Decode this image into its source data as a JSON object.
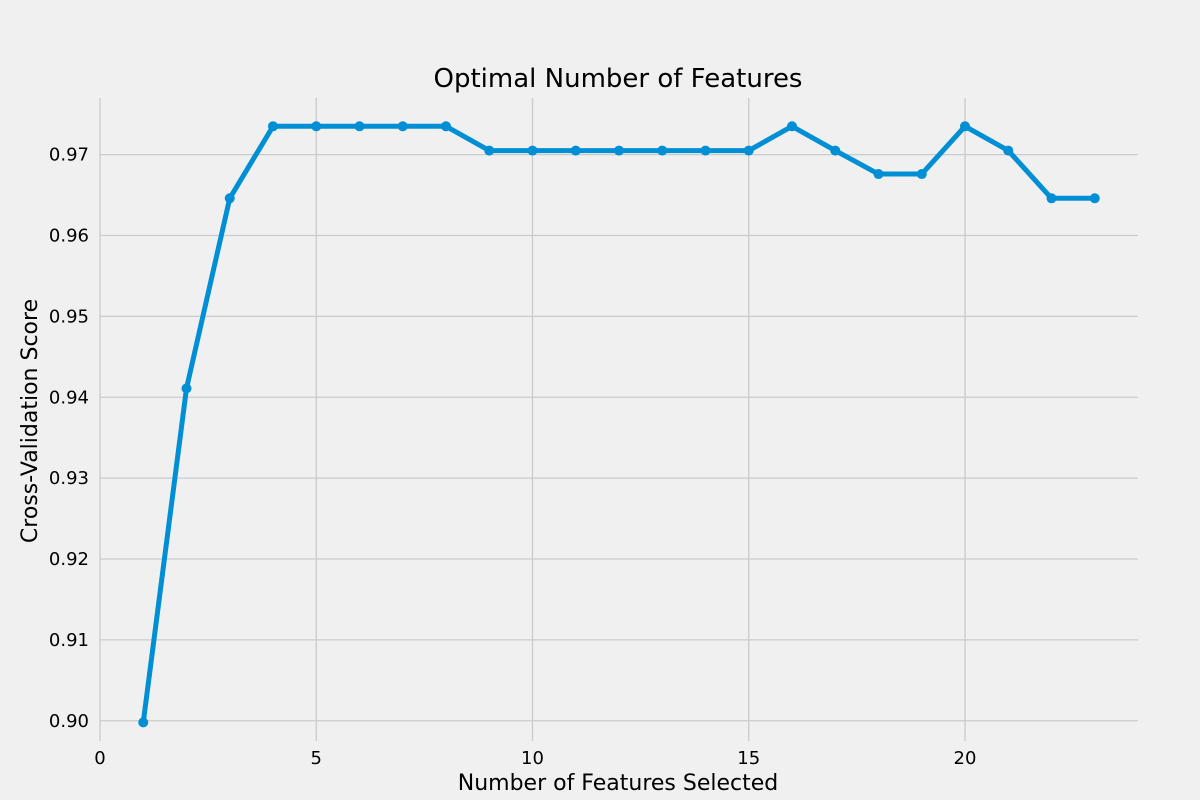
{
  "chart_data": {
    "type": "line",
    "title": "Optimal Number of Features",
    "xlabel": "Number of Features Selected",
    "ylabel": "Cross-Validation Score",
    "xlim": [
      0,
      24
    ],
    "ylim": [
      0.8975,
      0.977
    ],
    "xticks": [
      0,
      5,
      10,
      15,
      20
    ],
    "xtick_labels": [
      "0",
      "5",
      "10",
      "15",
      "20"
    ],
    "yticks": [
      0.9,
      0.91,
      0.92,
      0.93,
      0.94,
      0.95,
      0.96,
      0.97
    ],
    "ytick_labels": [
      "0.90",
      "0.91",
      "0.92",
      "0.93",
      "0.94",
      "0.95",
      "0.96",
      "0.97"
    ],
    "grid": true,
    "x": [
      1,
      2,
      3,
      4,
      5,
      6,
      7,
      8,
      9,
      10,
      11,
      12,
      13,
      14,
      15,
      16,
      17,
      18,
      19,
      20,
      21,
      22,
      23
    ],
    "series": [
      {
        "values": [
          0.8998,
          0.9411,
          0.9646,
          0.9735,
          0.9735,
          0.9735,
          0.9735,
          0.9735,
          0.9705,
          0.9705,
          0.9705,
          0.9705,
          0.9705,
          0.9705,
          0.9705,
          0.9735,
          0.9705,
          0.9676,
          0.9676,
          0.9735,
          0.9705,
          0.9646,
          0.9646
        ],
        "color": "#008fd5"
      }
    ],
    "background": "#f0f0f0",
    "grid_color": "#cbcbcb"
  }
}
